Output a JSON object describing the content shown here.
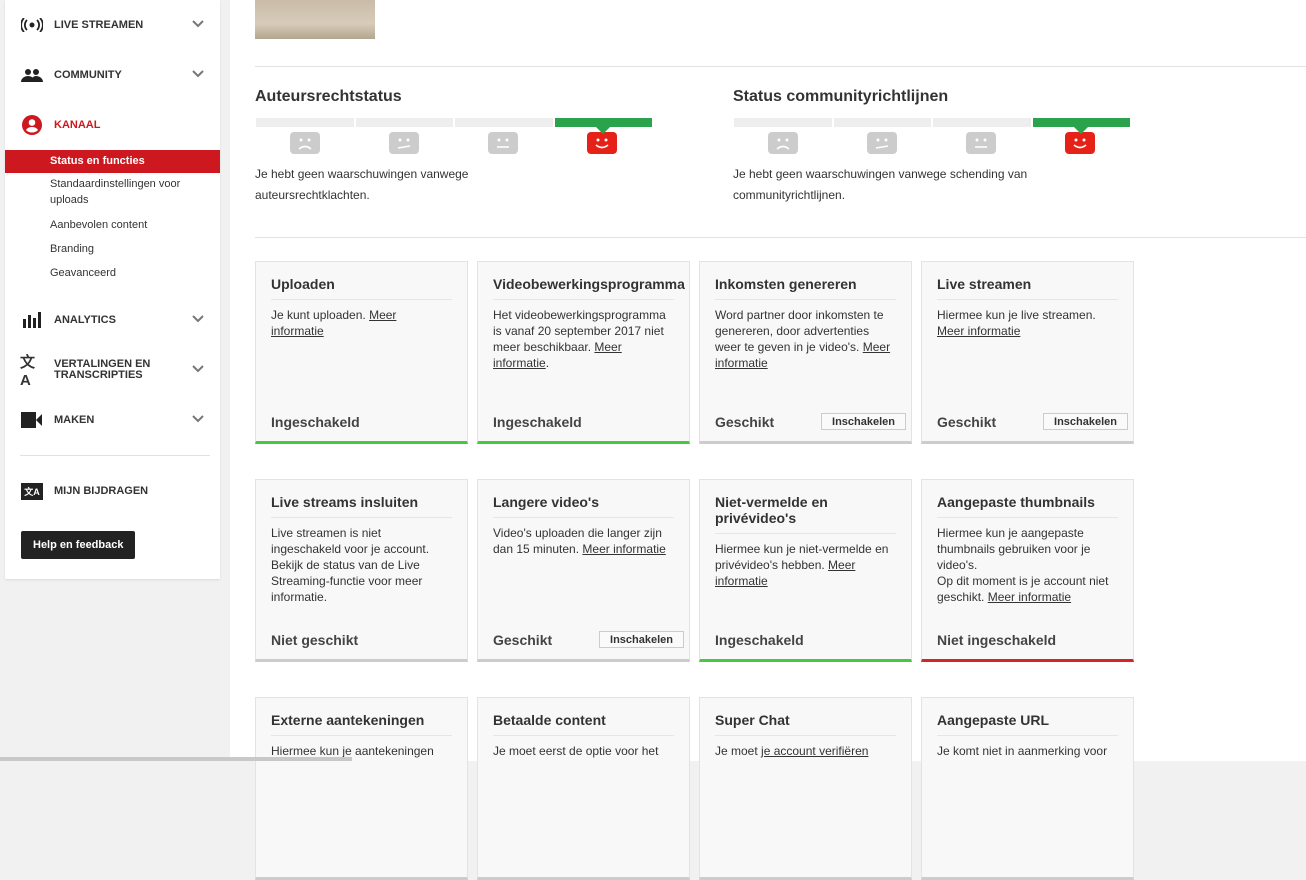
{
  "sidebar": {
    "items": [
      {
        "label": "LIVE STREAMEN",
        "icon": "live-icon"
      },
      {
        "label": "COMMUNITY",
        "icon": "community-icon"
      },
      {
        "label": "KANAAL",
        "icon": "account-icon",
        "active": true
      },
      {
        "label": "ANALYTICS",
        "icon": "analytics-icon"
      },
      {
        "label": "VERTALINGEN EN TRANSCRIPTIES",
        "icon": "translate-icon"
      },
      {
        "label": "MAKEN",
        "icon": "video-camera-icon"
      },
      {
        "label": "MIJN BIJDRAGEN",
        "icon": "contributions-icon"
      }
    ],
    "subitems": [
      "Status en functies",
      "Standaardinstellingen voor uploads",
      "Aanbevolen content",
      "Branding",
      "Geavanceerd"
    ],
    "help": "Help en feedback",
    "accent": "#cc181e"
  },
  "copyright": {
    "title": "Auteursrechtstatus",
    "level": 4,
    "text": "Je hebt geen waarschuwingen vanwege auteursrechtklachten."
  },
  "community": {
    "title": "Status communityrichtlijnen",
    "level": 4,
    "text": "Je hebt geen waarschuwingen vanwege schending van communityrichtlijnen."
  },
  "cards": [
    {
      "title": "Uploaden",
      "desc": [
        {
          "t": "Je kunt uploaden. "
        },
        {
          "t": "Meer informatie",
          "link": true
        }
      ],
      "status": "Ingeschakeld",
      "bar": "green"
    },
    {
      "title": "Videobewerkingsprogramma",
      "desc": [
        {
          "t": "Het videobewerkingsprogramma is vanaf 20 september 2017 niet meer beschikbaar. "
        },
        {
          "t": "Meer informatie",
          "link": true
        },
        {
          "t": "."
        }
      ],
      "status": "Ingeschakeld",
      "bar": "green"
    },
    {
      "title": "Inkomsten genereren",
      "desc": [
        {
          "t": "Word partner door inkomsten te genereren, door advertenties weer te geven in je video's. "
        },
        {
          "t": "Meer informatie",
          "link": true
        }
      ],
      "status": "Geschikt",
      "button": "Inschakelen",
      "bar": "gray"
    },
    {
      "title": "Live streamen",
      "desc": [
        {
          "t": "Hiermee kun je live streamen. "
        },
        {
          "t": "Meer informatie",
          "link": true
        }
      ],
      "status": "Geschikt",
      "button": "Inschakelen",
      "bar": "gray"
    },
    {
      "title": "Live streams insluiten",
      "desc": [
        {
          "t": "Live streamen is niet ingeschakeld voor je account. Bekijk de status van de Live Streaming-functie voor meer informatie."
        }
      ],
      "status": "Niet geschikt",
      "bar": "gray"
    },
    {
      "title": "Langere video's",
      "desc": [
        {
          "t": "Video's uploaden die langer zijn dan 15 minuten. "
        },
        {
          "t": "Meer informatie",
          "link": true
        }
      ],
      "status": "Geschikt",
      "button": "Inschakelen",
      "bar": "gray"
    },
    {
      "title": "Niet-vermelde en privévideo's",
      "desc": [
        {
          "t": "Hiermee kun je niet-vermelde en privévideo's hebben. "
        },
        {
          "t": "Meer informatie",
          "link": true
        }
      ],
      "status": "Ingeschakeld",
      "bar": "green"
    },
    {
      "title": "Aangepaste thumbnails",
      "desc": [
        {
          "t": "Hiermee kun je aangepaste thumbnails gebruiken voor je video's.\nOp dit moment is je account niet geschikt. "
        },
        {
          "t": "Meer informatie",
          "link": true
        }
      ],
      "status": "Niet ingeschakeld",
      "bar": "red"
    },
    {
      "title": "Externe aantekeningen",
      "desc": [
        {
          "t": "Hiermee kun je aantekeningen"
        }
      ],
      "status": "",
      "bar": "gray"
    },
    {
      "title": "Betaalde content",
      "desc": [
        {
          "t": "Je moet eerst de optie voor het"
        }
      ],
      "status": "",
      "bar": "gray"
    },
    {
      "title": "Super Chat",
      "desc": [
        {
          "t": "Je moet "
        },
        {
          "t": "je account verifiëren",
          "link": true
        }
      ],
      "status": "",
      "bar": "gray"
    },
    {
      "title": "Aangepaste URL",
      "desc": [
        {
          "t": "Je komt niet in aanmerking voor"
        }
      ],
      "status": "",
      "bar": "gray"
    }
  ]
}
